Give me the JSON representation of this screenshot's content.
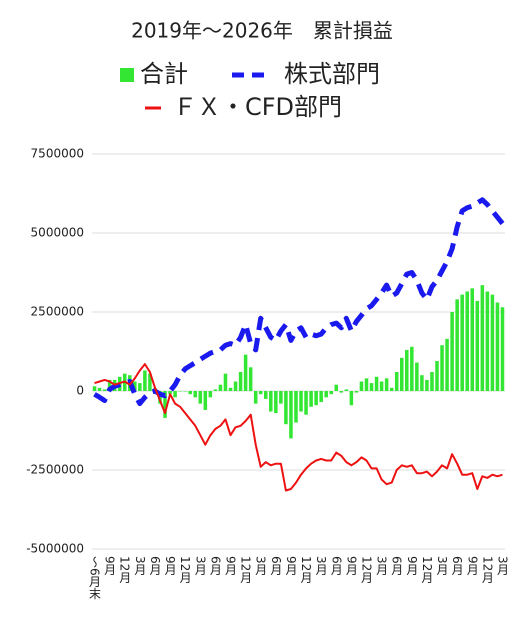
{
  "chart_data": {
    "type": "combo",
    "title": "2019年～2026年　累計損益",
    "categories": [
      "～6月末",
      null,
      null,
      "9月",
      null,
      null,
      "12月",
      null,
      null,
      "3月",
      null,
      null,
      "6月",
      null,
      null,
      "9月",
      null,
      null,
      "12月",
      null,
      null,
      "3月",
      null,
      null,
      "6月",
      null,
      null,
      "9月",
      null,
      null,
      "12月",
      null,
      null,
      "3月",
      null,
      null,
      "6月",
      null,
      null,
      "9月",
      null,
      null,
      "12月",
      null,
      null,
      "3月",
      null,
      null,
      "6月",
      null,
      null,
      "9月",
      null,
      null,
      "12月",
      null,
      null,
      "3月",
      null,
      null,
      "6月",
      null,
      null,
      "9月",
      null,
      null,
      "12月",
      null,
      null,
      "3月",
      null,
      null,
      "6月",
      null,
      null,
      "9月",
      null,
      null,
      "12月",
      null,
      null,
      "3月"
    ],
    "series": [
      {
        "name": "合計",
        "type": "bar",
        "color": "#33e633",
        "values": [
          150000,
          100000,
          50000,
          350000,
          350000,
          450000,
          550000,
          500000,
          300000,
          250000,
          650000,
          550000,
          100000,
          -400000,
          -850000,
          -100000,
          -200000,
          0,
          0,
          -100000,
          -200000,
          -400000,
          -600000,
          -200000,
          50000,
          200000,
          550000,
          100000,
          300000,
          600000,
          1150000,
          750000,
          -400000,
          -100000,
          -250000,
          -650000,
          -700000,
          -400000,
          -1050000,
          -1500000,
          -1000000,
          -650000,
          -750000,
          -500000,
          -450000,
          -350000,
          -200000,
          -100000,
          200000,
          -50000,
          50000,
          -450000,
          -50000,
          300000,
          400000,
          250000,
          450000,
          300000,
          400000,
          100000,
          600000,
          1050000,
          1300000,
          1400000,
          900000,
          500000,
          350000,
          600000,
          950000,
          1450000,
          1650000,
          2500000,
          2900000,
          3050000,
          3150000,
          3250000,
          2850000,
          3350000,
          3150000,
          3050000,
          2800000,
          2650000
        ]
      },
      {
        "name": "株式部門",
        "type": "line",
        "line_style": "dashed",
        "color": "#1a1aee",
        "values": [
          -100000,
          -200000,
          -300000,
          50000,
          150000,
          200000,
          250000,
          300000,
          -100000,
          -400000,
          -200000,
          -50000,
          0,
          -100000,
          -150000,
          0,
          200000,
          500000,
          700000,
          800000,
          900000,
          1000000,
          1100000,
          1200000,
          1250000,
          1300000,
          1450000,
          1500000,
          1450000,
          1700000,
          2100000,
          1500000,
          1300000,
          2300000,
          2000000,
          1700000,
          1600000,
          1900000,
          2100000,
          1600000,
          1900000,
          2000000,
          1700000,
          1800000,
          1750000,
          1800000,
          2000000,
          2100000,
          2150000,
          2000000,
          2300000,
          1900000,
          2200000,
          2400000,
          2600000,
          2700000,
          2900000,
          3100000,
          3350000,
          3000000,
          3100000,
          3400000,
          3700000,
          3750000,
          3500000,
          3100000,
          2900000,
          3300000,
          3500000,
          3800000,
          4100000,
          4500000,
          5200000,
          5700000,
          5800000,
          5850000,
          5950000,
          6050000,
          5900000,
          5700000,
          5500000,
          5300000
        ]
      },
      {
        "name": "ＦＸ・CFD部門",
        "type": "line",
        "line_style": "solid",
        "color": "#ee1111",
        "values": [
          250000,
          300000,
          350000,
          300000,
          200000,
          250000,
          300000,
          200000,
          400000,
          650000,
          850000,
          600000,
          100000,
          -300000,
          -700000,
          -100000,
          -400000,
          -500000,
          -700000,
          -900000,
          -1100000,
          -1400000,
          -1700000,
          -1400000,
          -1200000,
          -1100000,
          -900000,
          -1400000,
          -1150000,
          -1100000,
          -950000,
          -750000,
          -1700000,
          -2400000,
          -2250000,
          -2350000,
          -2300000,
          -2300000,
          -3150000,
          -3100000,
          -2900000,
          -2650000,
          -2450000,
          -2300000,
          -2200000,
          -2150000,
          -2200000,
          -2200000,
          -1950000,
          -2050000,
          -2250000,
          -2350000,
          -2250000,
          -2100000,
          -2200000,
          -2450000,
          -2450000,
          -2800000,
          -2950000,
          -2900000,
          -2500000,
          -2350000,
          -2400000,
          -2350000,
          -2600000,
          -2600000,
          -2550000,
          -2700000,
          -2550000,
          -2350000,
          -2450000,
          -2000000,
          -2300000,
          -2650000,
          -2650000,
          -2600000,
          -3100000,
          -2700000,
          -2750000,
          -2650000,
          -2700000,
          -2650000
        ]
      }
    ],
    "ylim": [
      -5000000,
      7500000
    ],
    "yticks": [
      -5000000,
      -2500000,
      0,
      2500000,
      5000000,
      7500000
    ],
    "grid": true
  }
}
